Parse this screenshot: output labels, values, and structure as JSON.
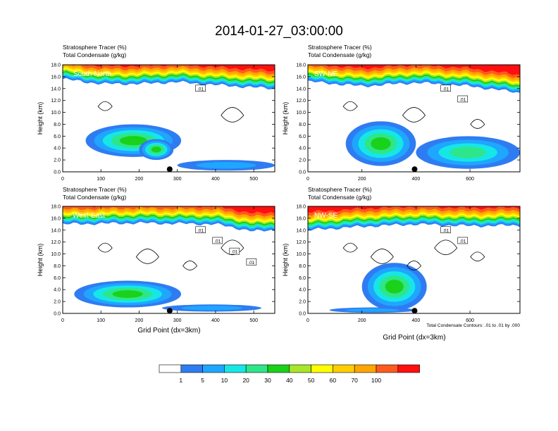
{
  "title": "2014-01-27_03:00:00",
  "colors": {
    "levels": [
      "#ffffff",
      "#2f7cf2",
      "#1fa6ff",
      "#17e6e6",
      "#2ee68a",
      "#19d219",
      "#a7e62a",
      "#ffff00",
      "#ffce00",
      "#ffa500",
      "#ff5a1f",
      "#ff0f0f"
    ],
    "contour": "#000000"
  },
  "legend": {
    "labels": [
      "1",
      "5",
      "10",
      "20",
      "30",
      "40",
      "50",
      "60",
      "70",
      "100"
    ]
  },
  "footnote": "Total Condensate Contours: .01 to .01 by .000",
  "xlabel": "Grid Point (dx=3km)",
  "chart_data": [
    {
      "type": "heatmap",
      "panel": "South-North",
      "title_line1": "Stratosphere Tracer   (%)",
      "title_line2": "Total Condensate   (g/kg)",
      "ylabel": "Height (km)",
      "xlim": [
        0,
        555
      ],
      "ylim": [
        0,
        18
      ],
      "xticks": [
        0,
        100,
        200,
        300,
        400,
        500
      ],
      "yticks": [
        "0.0",
        "2.0",
        "4.0",
        "6.0",
        "8.0",
        "10.0",
        "12.0",
        "14.0",
        "16.0",
        "18.0"
      ],
      "marker_x": 280,
      "stratosphere_base_km": [
        [
          0,
          15.6
        ],
        [
          100,
          14.8
        ],
        [
          200,
          14.8
        ],
        [
          300,
          15.1
        ],
        [
          400,
          14.6
        ],
        [
          500,
          14.2
        ],
        [
          555,
          14.0
        ]
      ],
      "tracer_blobs": [
        {
          "x": [
            60,
            310
          ],
          "z": [
            2.5,
            8.0
          ],
          "peak": 30
        },
        {
          "x": [
            200,
            290
          ],
          "z": [
            2.0,
            5.5
          ],
          "peak": 30
        },
        {
          "x": [
            300,
            555
          ],
          "z": [
            0.2,
            2.0
          ],
          "peak": 5
        }
      ],
      "contour_labels": [
        ".01"
      ]
    },
    {
      "type": "heatmap",
      "panel": "SW-NE",
      "title_line1": "Stratosphere Tracer   (%)",
      "title_line2": "Total Condensate   (g/kg)",
      "ylabel": "Height (km)",
      "xlim": [
        0,
        785
      ],
      "ylim": [
        0,
        18
      ],
      "xticks": [
        0,
        200,
        400,
        600
      ],
      "yticks": [
        "0.0",
        "2.0",
        "4.0",
        "6.0",
        "8.0",
        "10.0",
        "12.0",
        "14.0",
        "16.0",
        "18.0"
      ],
      "marker_x": 395,
      "stratosphere_base_km": [
        [
          0,
          15.2
        ],
        [
          200,
          14.4
        ],
        [
          400,
          15.0
        ],
        [
          600,
          14.4
        ],
        [
          785,
          13.3
        ]
      ],
      "tracer_blobs": [
        {
          "x": [
            140,
            400
          ],
          "z": [
            1.0,
            8.5
          ],
          "peak": 30
        },
        {
          "x": [
            400,
            785
          ],
          "z": [
            0.5,
            6.0
          ],
          "peak": 20
        }
      ],
      "contour_labels": [
        ".01",
        ".01"
      ]
    },
    {
      "type": "heatmap",
      "panel": "West-East",
      "title_line1": "Stratosphere Tracer   (%)",
      "title_line2": "Total Condensate   (g/kg)",
      "ylabel": "Height (km)",
      "xlim": [
        0,
        555
      ],
      "ylim": [
        0,
        18
      ],
      "xticks": [
        0,
        100,
        200,
        300,
        400,
        500
      ],
      "yticks": [
        "0.0",
        "2.0",
        "4.0",
        "6.0",
        "8.0",
        "10.0",
        "12.0",
        "14.0",
        "16.0",
        "18.0"
      ],
      "marker_x": 280,
      "stratosphere_base_km": [
        [
          0,
          15.0
        ],
        [
          200,
          15.2
        ],
        [
          400,
          15.0
        ],
        [
          500,
          13.8
        ],
        [
          555,
          14.0
        ]
      ],
      "tracer_blobs": [
        {
          "x": [
            30,
            310
          ],
          "z": [
            1.0,
            5.5
          ],
          "peak": 30
        },
        {
          "x": [
            260,
            520
          ],
          "z": [
            0.3,
            1.5
          ],
          "peak": 5
        }
      ],
      "contour_labels": [
        ".01",
        ".01",
        ".01",
        ".01"
      ]
    },
    {
      "type": "heatmap",
      "panel": "NW-SE",
      "title_line1": "Stratosphere Tracer   (%)",
      "title_line2": "Total Condensate   (g/kg)",
      "ylabel": "Height (km)",
      "xlim": [
        0,
        785
      ],
      "ylim": [
        0,
        18
      ],
      "xticks": [
        0,
        200,
        400,
        600
      ],
      "yticks": [
        "0.0",
        "2.0",
        "4.0",
        "6.0",
        "8.0",
        "10.0",
        "12.0",
        "14.0",
        "16.0",
        "18.0"
      ],
      "marker_x": 395,
      "stratosphere_base_km": [
        [
          0,
          14.0
        ],
        [
          200,
          14.6
        ],
        [
          400,
          15.0
        ],
        [
          600,
          14.7
        ],
        [
          785,
          14.8
        ]
      ],
      "tracer_blobs": [
        {
          "x": [
            200,
            440
          ],
          "z": [
            0.5,
            8.5
          ],
          "peak": 30
        },
        {
          "x": [
            80,
            400
          ],
          "z": [
            0.1,
            1.0
          ],
          "peak": 5
        }
      ],
      "contour_labels": [
        ".01",
        ".01"
      ]
    }
  ]
}
